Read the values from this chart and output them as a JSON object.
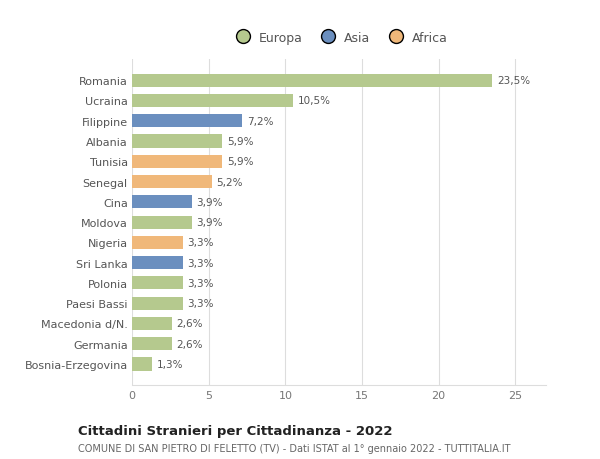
{
  "categories": [
    "Romania",
    "Ucraina",
    "Filippine",
    "Albania",
    "Tunisia",
    "Senegal",
    "Cina",
    "Moldova",
    "Nigeria",
    "Sri Lanka",
    "Polonia",
    "Paesi Bassi",
    "Macedonia d/N.",
    "Germania",
    "Bosnia-Erzegovina"
  ],
  "values": [
    23.5,
    10.5,
    7.2,
    5.9,
    5.9,
    5.2,
    3.9,
    3.9,
    3.3,
    3.3,
    3.3,
    3.3,
    2.6,
    2.6,
    1.3
  ],
  "labels": [
    "23,5%",
    "10,5%",
    "7,2%",
    "5,9%",
    "5,9%",
    "5,2%",
    "3,9%",
    "3,9%",
    "3,3%",
    "3,3%",
    "3,3%",
    "3,3%",
    "2,6%",
    "2,6%",
    "1,3%"
  ],
  "colors": [
    "#b5c98e",
    "#b5c98e",
    "#6b8fbf",
    "#b5c98e",
    "#f0b87a",
    "#f0b87a",
    "#6b8fbf",
    "#b5c98e",
    "#f0b87a",
    "#6b8fbf",
    "#b5c98e",
    "#b5c98e",
    "#b5c98e",
    "#b5c98e",
    "#b5c98e"
  ],
  "legend_labels": [
    "Europa",
    "Asia",
    "Africa"
  ],
  "legend_colors": [
    "#b5c98e",
    "#6b8fbf",
    "#f0b87a"
  ],
  "title": "Cittadini Stranieri per Cittadinanza - 2022",
  "subtitle": "COMUNE DI SAN PIETRO DI FELETTO (TV) - Dati ISTAT al 1° gennaio 2022 - TUTTITALIA.IT",
  "xlim": [
    0,
    27
  ],
  "xticks": [
    0,
    5,
    10,
    15,
    20,
    25
  ],
  "background_color": "#ffffff",
  "grid_color": "#dddddd"
}
